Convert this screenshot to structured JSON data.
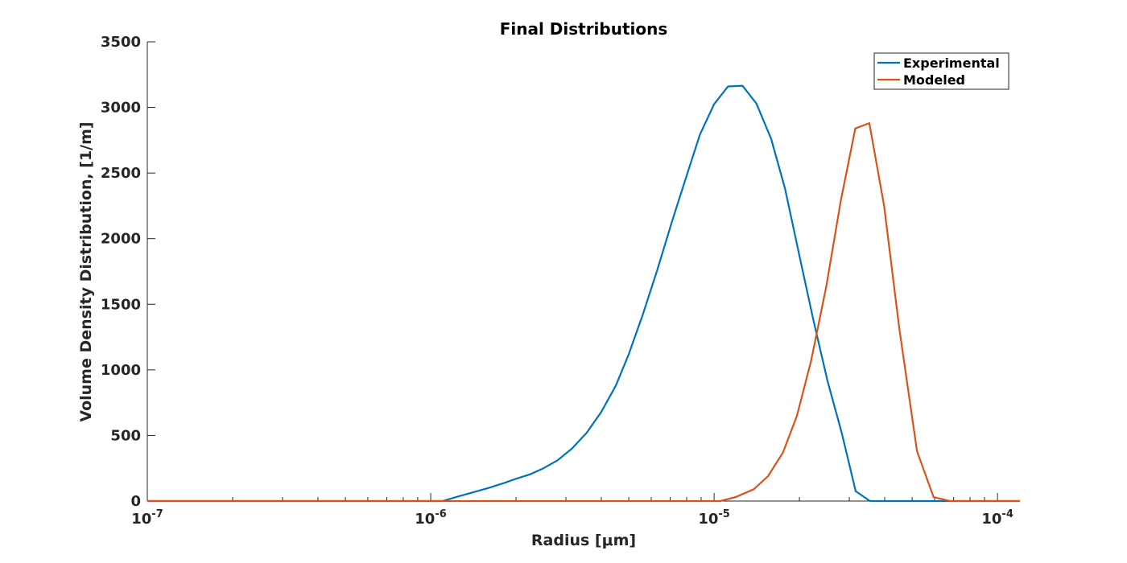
{
  "chart_data": {
    "type": "line",
    "title": "Final Distributions",
    "xlabel": "Radius [μm]",
    "ylabel": "Volume Density Distribution, [1/m]",
    "xscale": "log",
    "xlim": [
      1e-07,
      0.00012
    ],
    "ylim": [
      0,
      3500
    ],
    "xticks": [
      1e-07,
      1e-06,
      1e-05,
      0.0001
    ],
    "xtick_labels": [
      {
        "base": "10",
        "exp": "-7"
      },
      {
        "base": "10",
        "exp": "-6"
      },
      {
        "base": "10",
        "exp": "-5"
      },
      {
        "base": "10",
        "exp": "-4"
      }
    ],
    "yticks": [
      0,
      500,
      1000,
      1500,
      2000,
      2500,
      3000,
      3500
    ],
    "ytick_labels": [
      "0",
      "500",
      "1000",
      "1500",
      "2000",
      "2500",
      "3000",
      "3500"
    ],
    "grid": false,
    "legend_position": "top-right",
    "series": [
      {
        "name": "Experimental",
        "color": "#0072BD",
        "points": [
          [
            1e-07,
            0
          ],
          [
            1.1e-06,
            0
          ],
          [
            1.25e-06,
            35
          ],
          [
            1.4e-06,
            65
          ],
          [
            1.6e-06,
            100
          ],
          [
            1.8e-06,
            135
          ],
          [
            2e-06,
            170
          ],
          [
            2.25e-06,
            205
          ],
          [
            2.5e-06,
            250
          ],
          [
            2.8e-06,
            310
          ],
          [
            3.15e-06,
            400
          ],
          [
            3.55e-06,
            520
          ],
          [
            4e-06,
            680
          ],
          [
            4.5e-06,
            880
          ],
          [
            5e-06,
            1120
          ],
          [
            5.6e-06,
            1420
          ],
          [
            6.3e-06,
            1760
          ],
          [
            7.1e-06,
            2130
          ],
          [
            8e-06,
            2480
          ],
          [
            8.9e-06,
            2790
          ],
          [
            1e-05,
            3025
          ],
          [
            1.12e-05,
            3160
          ],
          [
            1.26e-05,
            3165
          ],
          [
            1.41e-05,
            3030
          ],
          [
            1.59e-05,
            2760
          ],
          [
            1.78e-05,
            2380
          ],
          [
            2e-05,
            1870
          ],
          [
            2.24e-05,
            1380
          ],
          [
            2.51e-05,
            920
          ],
          [
            2.82e-05,
            520
          ],
          [
            3.16e-05,
            75
          ],
          [
            3.55e-05,
            0
          ],
          [
            0.00012,
            0
          ]
        ]
      },
      {
        "name": "Modeled",
        "color": "#D95319",
        "points": [
          [
            1e-07,
            0
          ],
          [
            1.05e-05,
            0
          ],
          [
            1.19e-05,
            30
          ],
          [
            1.38e-05,
            90
          ],
          [
            1.55e-05,
            190
          ],
          [
            1.75e-05,
            370
          ],
          [
            1.96e-05,
            650
          ],
          [
            2.2e-05,
            1070
          ],
          [
            2.49e-05,
            1640
          ],
          [
            2.8e-05,
            2290
          ],
          [
            3.15e-05,
            2840
          ],
          [
            3.53e-05,
            2880
          ],
          [
            3.98e-05,
            2250
          ],
          [
            4.5e-05,
            1320
          ],
          [
            5.2e-05,
            380
          ],
          [
            5.95e-05,
            30
          ],
          [
            6.8e-05,
            0
          ],
          [
            0.00012,
            0
          ]
        ]
      }
    ]
  }
}
